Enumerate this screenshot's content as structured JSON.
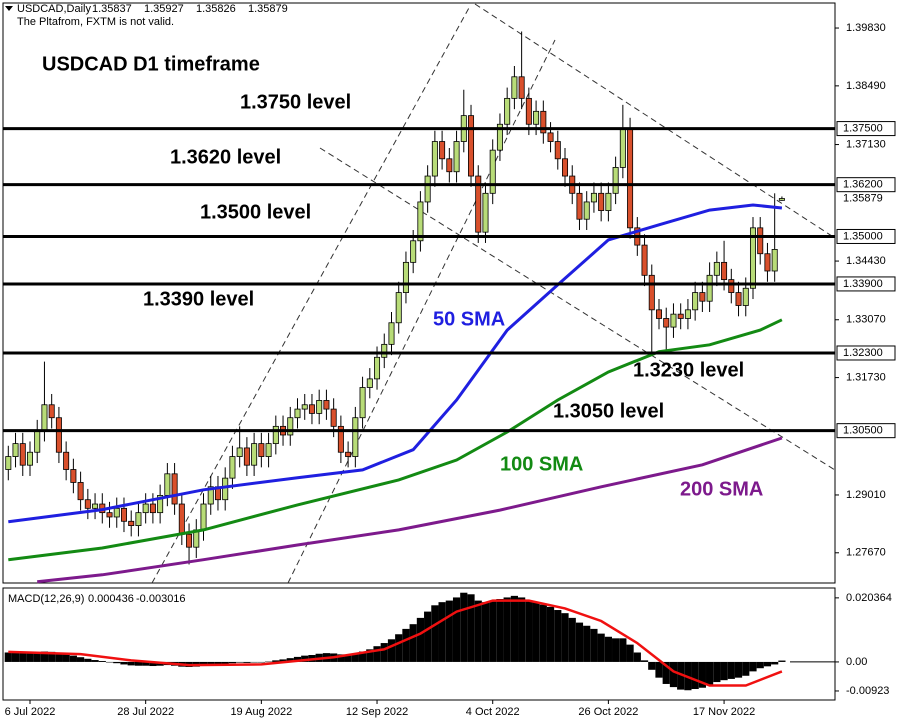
{
  "header": {
    "symbol": "USDCAD,Daily",
    "ohlc": [
      1.35837,
      1.35927,
      1.35826,
      1.35879
    ],
    "notice": "The Pltafrom, FXTM is not valid."
  },
  "chart_data": [
    {
      "type": "candlestick",
      "title": "USDCAD D1 timeframe",
      "categories": [
        null,
        null,
        null,
        "6 Jul 2022",
        null,
        null,
        null,
        null,
        null,
        null,
        null,
        null,
        null,
        null,
        null,
        null,
        null,
        null,
        null,
        "28 Jul 2022",
        null,
        null,
        null,
        null,
        null,
        null,
        null,
        null,
        null,
        null,
        null,
        null,
        null,
        null,
        null,
        "19 Aug 2022",
        null,
        null,
        null,
        null,
        null,
        null,
        null,
        null,
        null,
        null,
        null,
        null,
        null,
        null,
        null,
        "12 Sep 2022",
        null,
        null,
        null,
        null,
        null,
        null,
        null,
        null,
        null,
        null,
        null,
        null,
        null,
        null,
        null,
        "4 Oct 2022",
        null,
        null,
        null,
        null,
        null,
        null,
        null,
        null,
        null,
        null,
        null,
        null,
        null,
        null,
        null,
        "26 Oct 2022",
        null,
        null,
        null,
        null,
        null,
        null,
        null,
        null,
        null,
        null,
        null,
        null,
        null,
        null,
        null,
        "17 Nov 2022",
        null,
        null,
        null,
        null,
        null,
        null,
        null,
        null
      ],
      "open": [
        1.296,
        1.299,
        1.302,
        1.297,
        1.3,
        1.305,
        1.311,
        1.308,
        1.3,
        1.296,
        1.293,
        1.289,
        1.287,
        1.288,
        1.286,
        1.285,
        1.287,
        1.284,
        1.283,
        1.286,
        1.288,
        1.286,
        1.29,
        1.295,
        1.288,
        1.281,
        1.278,
        1.282,
        1.288,
        1.292,
        1.289,
        1.294,
        1.299,
        1.301,
        1.297,
        1.302,
        1.299,
        1.302,
        1.306,
        1.304,
        1.308,
        1.31,
        1.311,
        1.309,
        1.312,
        1.31,
        1.306,
        1.3,
        1.299,
        1.308,
        1.315,
        1.317,
        1.322,
        1.325,
        1.33,
        1.337,
        1.344,
        1.349,
        1.358,
        1.364,
        1.372,
        1.368,
        1.365,
        1.372,
        1.378,
        1.364,
        1.351,
        1.36,
        1.37,
        1.376,
        1.382,
        1.387,
        1.382,
        1.376,
        1.379,
        1.374,
        1.372,
        1.368,
        1.364,
        1.36,
        1.354,
        1.358,
        1.36,
        1.356,
        1.36,
        1.366,
        1.375,
        1.352,
        1.348,
        1.341,
        1.333,
        1.331,
        1.329,
        1.332,
        1.331,
        1.333,
        1.337,
        1.335,
        1.341,
        1.344,
        1.34,
        1.337,
        1.334,
        1.338,
        1.352,
        1.346,
        1.342,
        1.35837
      ],
      "high": [
        1.3015,
        1.3045,
        1.3045,
        1.3025,
        1.3075,
        1.321,
        1.3135,
        1.3105,
        1.3025,
        1.2985,
        1.2955,
        1.2915,
        1.2905,
        1.2905,
        1.2885,
        1.2895,
        1.2895,
        1.2865,
        1.2885,
        1.2905,
        1.2905,
        1.2925,
        1.2975,
        1.2975,
        1.2905,
        1.2835,
        1.2845,
        1.2905,
        1.2945,
        1.2945,
        1.2965,
        1.3015,
        1.306,
        1.3035,
        1.3045,
        1.3045,
        1.3045,
        1.3085,
        1.3085,
        1.3105,
        1.3125,
        1.3135,
        1.3135,
        1.3145,
        1.3145,
        1.3125,
        1.3085,
        1.3025,
        1.3105,
        1.3175,
        1.3195,
        1.3245,
        1.3275,
        1.3325,
        1.3395,
        1.3465,
        1.3515,
        1.3605,
        1.3665,
        1.3745,
        1.3745,
        1.3705,
        1.3745,
        1.384,
        1.3805,
        1.3665,
        1.3625,
        1.3725,
        1.3785,
        1.3845,
        1.3895,
        1.3975,
        1.3845,
        1.3815,
        1.3815,
        1.3765,
        1.3745,
        1.3705,
        1.3665,
        1.3625,
        1.3605,
        1.3625,
        1.3625,
        1.3625,
        1.3685,
        1.3805,
        1.3775,
        1.3545,
        1.3505,
        1.3435,
        1.3355,
        1.3335,
        1.3345,
        1.3345,
        1.3355,
        1.3395,
        1.3395,
        1.344,
        1.3465,
        1.349,
        1.3425,
        1.3395,
        1.3405,
        1.3545,
        1.3545,
        1.3485,
        1.36,
        1.35927
      ],
      "low": [
        1.2935,
        1.2965,
        1.2945,
        1.2945,
        1.2975,
        1.3025,
        1.3055,
        1.2975,
        1.2935,
        1.2905,
        1.2865,
        1.2845,
        1.2845,
        1.2835,
        1.2825,
        1.2825,
        1.2815,
        1.2805,
        1.2805,
        1.2835,
        1.2835,
        1.2835,
        1.2875,
        1.2855,
        1.2785,
        1.274,
        1.2755,
        1.2795,
        1.2855,
        1.2865,
        1.2865,
        1.2915,
        1.2965,
        1.2945,
        1.2945,
        1.2965,
        1.2965,
        1.2995,
        1.3015,
        1.3015,
        1.3055,
        1.3075,
        1.3065,
        1.3065,
        1.3075,
        1.3035,
        1.2975,
        1.2965,
        1.2965,
        1.3055,
        1.3125,
        1.3145,
        1.3195,
        1.3225,
        1.3275,
        1.3345,
        1.3415,
        1.3465,
        1.3555,
        1.3615,
        1.3655,
        1.3625,
        1.3625,
        1.3695,
        1.3615,
        1.3485,
        1.3485,
        1.3575,
        1.3675,
        1.3735,
        1.3795,
        1.3795,
        1.3735,
        1.3735,
        1.3715,
        1.3695,
        1.3655,
        1.3615,
        1.3575,
        1.3515,
        1.3515,
        1.3555,
        1.3535,
        1.3535,
        1.3575,
        1.3635,
        1.3495,
        1.3455,
        1.3385,
        1.3225,
        1.3285,
        1.323,
        1.3265,
        1.3285,
        1.3285,
        1.3305,
        1.3325,
        1.3325,
        1.3385,
        1.3375,
        1.3345,
        1.3315,
        1.3315,
        1.3355,
        1.3435,
        1.3395,
        1.3395,
        1.35826
      ],
      "close": [
        1.299,
        1.302,
        1.297,
        1.3,
        1.305,
        1.311,
        1.308,
        1.3,
        1.296,
        1.293,
        1.289,
        1.287,
        1.288,
        1.286,
        1.285,
        1.287,
        1.284,
        1.283,
        1.286,
        1.288,
        1.286,
        1.29,
        1.295,
        1.288,
        1.281,
        1.278,
        1.282,
        1.288,
        1.292,
        1.289,
        1.294,
        1.299,
        1.301,
        1.297,
        1.302,
        1.299,
        1.302,
        1.306,
        1.304,
        1.308,
        1.31,
        1.311,
        1.309,
        1.312,
        1.31,
        1.306,
        1.3,
        1.299,
        1.308,
        1.315,
        1.317,
        1.322,
        1.325,
        1.33,
        1.337,
        1.344,
        1.349,
        1.358,
        1.364,
        1.372,
        1.368,
        1.365,
        1.372,
        1.378,
        1.364,
        1.351,
        1.36,
        1.37,
        1.376,
        1.382,
        1.387,
        1.382,
        1.376,
        1.379,
        1.374,
        1.372,
        1.368,
        1.364,
        1.36,
        1.354,
        1.358,
        1.36,
        1.356,
        1.36,
        1.366,
        1.375,
        1.352,
        1.348,
        1.341,
        1.333,
        1.331,
        1.329,
        1.332,
        1.331,
        1.333,
        1.337,
        1.335,
        1.341,
        1.344,
        1.34,
        1.337,
        1.334,
        1.338,
        1.352,
        1.346,
        1.342,
        1.347,
        1.35879
      ],
      "up_color": "#b8dc78",
      "down_color": "#d9502c",
      "ylim": [
        1.2697,
        1.4041
      ],
      "yticks": [
        {
          "value": 1.3983,
          "label": "1.39830"
        },
        {
          "value": 1.3849,
          "label": "1.38490"
        },
        {
          "value": 1.3713,
          "label": "1.37130"
        },
        {
          "value": 1.3443,
          "label": "1.34430"
        },
        {
          "value": 1.3307,
          "label": "1.33070"
        },
        {
          "value": 1.3173,
          "label": "1.31730"
        },
        {
          "value": 1.2901,
          "label": "1.29010"
        },
        {
          "value": 1.2767,
          "label": "1.27670"
        }
      ],
      "levels": [
        {
          "value": 1.375,
          "label": "1.37500",
          "text": "1.3750 level"
        },
        {
          "value": 1.362,
          "label": "1.36200",
          "text": "1.3620 level"
        },
        {
          "value": 1.35,
          "label": "1.35000",
          "text": "1.3500 level"
        },
        {
          "value": 1.339,
          "label": "1.33900",
          "text": "1.3390 level"
        },
        {
          "value": 1.323,
          "label": "1.32300",
          "text": "1.3230 level"
        },
        {
          "value": 1.305,
          "label": "1.30500",
          "text": "1.3050 level"
        }
      ],
      "series": [
        {
          "name": "50 SMA",
          "color": "#1f1fe0",
          "x": [
            0,
            13,
            27,
            40,
            49,
            56,
            62,
            69,
            76,
            83,
            90,
            97,
            103,
            107
          ],
          "values": [
            1.2839,
            1.2867,
            1.2913,
            1.2941,
            1.2959,
            1.3006,
            1.3121,
            1.3283,
            1.3388,
            1.3492,
            1.3527,
            1.3561,
            1.3573,
            1.3566
          ]
        },
        {
          "name": "100 SMA",
          "color": "#138a13",
          "x": [
            0,
            13,
            27,
            40,
            54,
            62,
            69,
            76,
            83,
            90,
            97,
            104,
            107
          ],
          "values": [
            1.2751,
            1.2778,
            1.282,
            1.2878,
            1.2936,
            1.2982,
            1.3047,
            1.3121,
            1.3186,
            1.3233,
            1.3249,
            1.3283,
            1.3307
          ]
        },
        {
          "name": "200 SMA",
          "color": "#7d1a8c",
          "x": [
            4,
            13,
            27,
            40,
            54,
            68,
            82,
            96,
            107
          ],
          "values": [
            1.27,
            1.2716,
            1.2751,
            1.2785,
            1.282,
            1.2866,
            1.292,
            1.2971,
            1.3033
          ]
        }
      ]
    },
    {
      "type": "macd",
      "label": "MACD(12,26,9)",
      "color": "#000000",
      "values": [
        0.003,
        0.0031,
        0.003,
        0.0029,
        0.003,
        0.0033,
        0.0032,
        0.0028,
        0.0024,
        0.002,
        0.0015,
        0.001,
        0.0006,
        0.0003,
        0.0,
        -0.0004,
        -0.0008,
        -0.0011,
        -0.0012,
        -0.0012,
        -0.0013,
        -0.0012,
        -0.001,
        -0.0012,
        -0.0015,
        -0.0016,
        -0.0015,
        -0.0012,
        -0.001,
        -0.0009,
        -0.0007,
        -0.0004,
        -0.0002,
        -0.0003,
        -0.0001,
        -0.0001,
        0.0001,
        0.0005,
        0.0008,
        0.0012,
        0.0016,
        0.002,
        0.0022,
        0.0026,
        0.0028,
        0.0027,
        0.0024,
        0.0022,
        0.0026,
        0.0033,
        0.004,
        0.005,
        0.006,
        0.0072,
        0.0088,
        0.0105,
        0.012,
        0.014,
        0.016,
        0.018,
        0.019,
        0.0195,
        0.0205,
        0.022,
        0.0215,
        0.0195,
        0.019,
        0.0195,
        0.02,
        0.0205,
        0.021,
        0.0205,
        0.0195,
        0.019,
        0.0182,
        0.0175,
        0.0165,
        0.0155,
        0.014,
        0.0125,
        0.0115,
        0.0105,
        0.009,
        0.008,
        0.0075,
        0.0075,
        0.0055,
        0.003,
        0.0005,
        -0.0025,
        -0.005,
        -0.007,
        -0.008,
        -0.0088,
        -0.009,
        -0.0086,
        -0.0082,
        -0.0074,
        -0.0064,
        -0.0058,
        -0.0054,
        -0.005,
        -0.0044,
        -0.003,
        -0.002,
        -0.0014,
        -0.0008,
        0.000436
      ],
      "signal": {
        "color": "#f01010",
        "x": [
          0,
          10,
          17,
          25,
          35,
          45,
          52,
          57,
          62,
          67,
          72,
          77,
          82,
          87,
          92,
          97,
          102,
          107
        ],
        "values": [
          0.0032,
          0.0025,
          0.0005,
          -0.001,
          -0.0008,
          0.0015,
          0.004,
          0.009,
          0.016,
          0.0195,
          0.0195,
          0.017,
          0.013,
          0.006,
          -0.003,
          -0.0075,
          -0.0075,
          -0.003016
        ]
      },
      "ylim": [
        -0.0121,
        0.0235
      ],
      "yticks": [
        0.020364,
        {
          "value": 0,
          "label": "0.00"
        },
        -0.00923
      ]
    }
  ]
}
